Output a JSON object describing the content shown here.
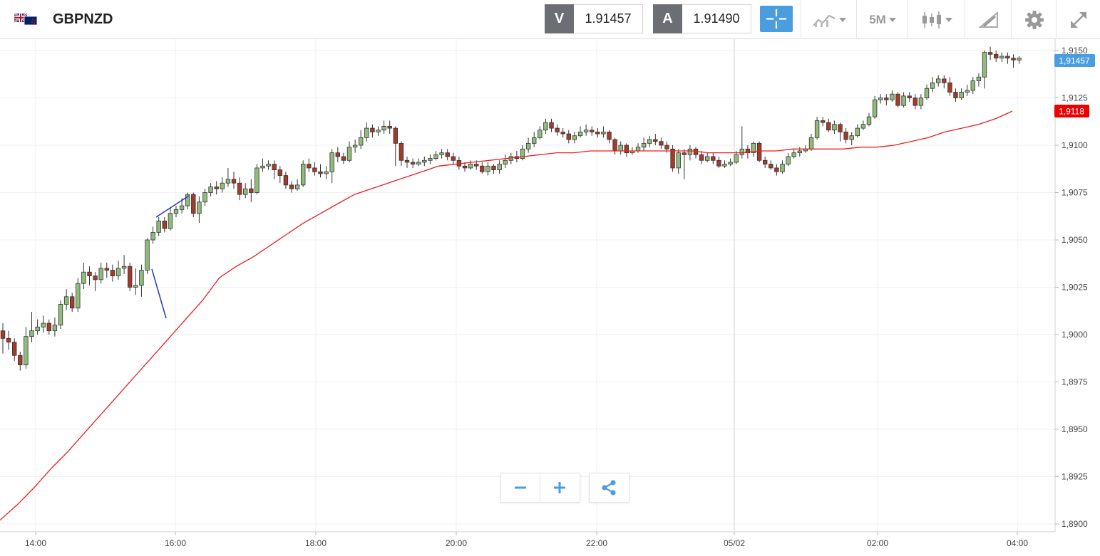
{
  "header": {
    "symbol": "GBPNZD",
    "sell_label": "V",
    "sell_price": "1.91457",
    "buy_label": "A",
    "buy_price": "1.91490",
    "timeframe": "5M"
  },
  "colors": {
    "accent": "#4a9ee0",
    "up": "#8fbc7a",
    "down": "#a33a2a",
    "ma": "#ee1c1c",
    "drawing": "#2233cc",
    "price_tag": "#4a9ee0",
    "ma_tag": "#ee0000"
  },
  "icons": [
    "gbp-nzd-flag-icon",
    "crosshair-icon",
    "chart-type-icon",
    "candlestick-icon",
    "drawing-tools-icon",
    "settings-gear-icon",
    "fullscreen-icon",
    "zoom-out-icon",
    "zoom-in-icon",
    "share-icon"
  ],
  "chart_data": {
    "type": "candlestick",
    "y_range": [
      1.8897,
      1.9152
    ],
    "x_tick_labels": [
      "14:00",
      "16:00",
      "18:00",
      "20:00",
      "22:00",
      "05/02",
      "02:00",
      "04:00"
    ],
    "y_tick_labels": [
      "1,9150",
      "1,9125",
      "1,9100",
      "1,9075",
      "1,9050",
      "1,9025",
      "1,9000",
      "1,8975",
      "1,8950",
      "1,8925",
      "1,8900"
    ],
    "current_price_tag": "1,91457",
    "ma_tag": "1,9118",
    "grid": true,
    "candles": [
      [
        1.9002,
        1.8998,
        1.9006,
        1.899
      ],
      [
        1.8998,
        1.8996,
        1.9002,
        1.8992
      ],
      [
        1.8996,
        1.8989,
        1.8998,
        1.8986
      ],
      [
        1.8989,
        1.8984,
        1.8991,
        1.8981
      ],
      [
        1.8984,
        1.8999,
        1.9004,
        1.8982
      ],
      [
        1.8999,
        1.9002,
        1.9012,
        1.8996
      ],
      [
        1.9002,
        1.9004,
        1.9008,
        1.9
      ],
      [
        1.9004,
        1.9006,
        1.901,
        1.9001
      ],
      [
        1.9006,
        1.9002,
        1.9008,
        1.9
      ],
      [
        1.9002,
        1.9005,
        1.9009,
        1.8999
      ],
      [
        1.9005,
        1.9016,
        1.9018,
        1.9003
      ],
      [
        1.9016,
        1.902,
        1.9024,
        1.9013
      ],
      [
        1.902,
        1.9014,
        1.9022,
        1.9012
      ],
      [
        1.9014,
        1.9027,
        1.903,
        1.9012
      ],
      [
        1.9027,
        1.9033,
        1.9038,
        1.9024
      ],
      [
        1.9033,
        1.9031,
        1.9036,
        1.9026
      ],
      [
        1.9031,
        1.9029,
        1.9033,
        1.9023
      ],
      [
        1.9029,
        1.9035,
        1.9038,
        1.9027
      ],
      [
        1.9035,
        1.9034,
        1.9038,
        1.903
      ],
      [
        1.9034,
        1.9031,
        1.9037,
        1.9028
      ],
      [
        1.9031,
        1.9035,
        1.9039,
        1.9029
      ],
      [
        1.9035,
        1.9036,
        1.9042,
        1.9032
      ],
      [
        1.9036,
        1.9025,
        1.9038,
        1.9023
      ],
      [
        1.9025,
        1.9026,
        1.9035,
        1.9021
      ],
      [
        1.9026,
        1.9034,
        1.9037,
        1.902
      ],
      [
        1.9034,
        1.905,
        1.9051,
        1.9032
      ],
      [
        1.905,
        1.9054,
        1.9057,
        1.9048
      ],
      [
        1.9054,
        1.906,
        1.9062,
        1.9052
      ],
      [
        1.906,
        1.9056,
        1.9062,
        1.9054
      ],
      [
        1.9056,
        1.9064,
        1.9067,
        1.9055
      ],
      [
        1.9064,
        1.9066,
        1.9068,
        1.9062
      ],
      [
        1.9066,
        1.9068,
        1.9072,
        1.9064
      ],
      [
        1.9068,
        1.9074,
        1.9075,
        1.9066
      ],
      [
        1.9074,
        1.9064,
        1.9075,
        1.9062
      ],
      [
        1.9064,
        1.907,
        1.9073,
        1.9059
      ],
      [
        1.907,
        1.9075,
        1.9077,
        1.9068
      ],
      [
        1.9075,
        1.9078,
        1.908,
        1.9073
      ],
      [
        1.9078,
        1.9077,
        1.9081,
        1.9074
      ],
      [
        1.9077,
        1.908,
        1.9083,
        1.9075
      ],
      [
        1.908,
        1.9082,
        1.9088,
        1.9078
      ],
      [
        1.9082,
        1.908,
        1.9086,
        1.9077
      ],
      [
        1.908,
        1.9074,
        1.9083,
        1.9071
      ],
      [
        1.9074,
        1.9077,
        1.908,
        1.9072
      ],
      [
        1.9077,
        1.9075,
        1.9082,
        1.907
      ],
      [
        1.9075,
        1.9088,
        1.909,
        1.9074
      ],
      [
        1.9088,
        1.9089,
        1.9093,
        1.9086
      ],
      [
        1.9089,
        1.909,
        1.9092,
        1.9087
      ],
      [
        1.909,
        1.9087,
        1.9092,
        1.9082
      ],
      [
        1.9087,
        1.9084,
        1.9089,
        1.908
      ],
      [
        1.9084,
        1.9079,
        1.9086,
        1.9077
      ],
      [
        1.9079,
        1.9077,
        1.9081,
        1.9075
      ],
      [
        1.9077,
        1.9079,
        1.9082,
        1.9076
      ],
      [
        1.9079,
        1.909,
        1.9092,
        1.9078
      ],
      [
        1.909,
        1.9088,
        1.9093,
        1.9086
      ],
      [
        1.9088,
        1.9086,
        1.9091,
        1.9084
      ],
      [
        1.9086,
        1.9085,
        1.909,
        1.9083
      ],
      [
        1.9085,
        1.9086,
        1.9089,
        1.9082
      ],
      [
        1.9086,
        1.9096,
        1.9098,
        1.908
      ],
      [
        1.9096,
        1.9094,
        1.9099,
        1.9091
      ],
      [
        1.9094,
        1.9092,
        1.9096,
        1.909
      ],
      [
        1.9092,
        1.9099,
        1.9102,
        1.9091
      ],
      [
        1.9099,
        1.91,
        1.9103,
        1.9096
      ],
      [
        1.91,
        1.9104,
        1.9108,
        1.9098
      ],
      [
        1.9104,
        1.9109,
        1.9112,
        1.9102
      ],
      [
        1.9109,
        1.9107,
        1.9111,
        1.9104
      ],
      [
        1.9107,
        1.9108,
        1.911,
        1.9105
      ],
      [
        1.9108,
        1.911,
        1.9113,
        1.9106
      ],
      [
        1.911,
        1.9109,
        1.9113,
        1.9106
      ],
      [
        1.9109,
        1.9101,
        1.911,
        1.9089
      ],
      [
        1.9101,
        1.9092,
        1.9102,
        1.9089
      ],
      [
        1.9092,
        1.9091,
        1.9094,
        1.9088
      ],
      [
        1.9091,
        1.909,
        1.9093,
        1.9088
      ],
      [
        1.909,
        1.9091,
        1.9093,
        1.9089
      ],
      [
        1.9091,
        1.9092,
        1.9094,
        1.9089
      ],
      [
        1.9092,
        1.9093,
        1.9095,
        1.909
      ],
      [
        1.9093,
        1.9095,
        1.9097,
        1.9092
      ],
      [
        1.9095,
        1.9096,
        1.9098,
        1.9093
      ],
      [
        1.9096,
        1.9094,
        1.9098,
        1.9092
      ],
      [
        1.9094,
        1.9092,
        1.9096,
        1.909
      ],
      [
        1.9092,
        1.9089,
        1.9094,
        1.9087
      ],
      [
        1.9089,
        1.9088,
        1.9091,
        1.9086
      ],
      [
        1.9088,
        1.909,
        1.9092,
        1.9087
      ],
      [
        1.909,
        1.9089,
        1.9092,
        1.9087
      ],
      [
        1.9089,
        1.9086,
        1.9091,
        1.9085
      ],
      [
        1.9086,
        1.9089,
        1.9091,
        1.9084
      ],
      [
        1.9089,
        1.9087,
        1.909,
        1.9085
      ],
      [
        1.9087,
        1.909,
        1.9092,
        1.9085
      ],
      [
        1.909,
        1.9092,
        1.9095,
        1.9088
      ],
      [
        1.9092,
        1.9094,
        1.9096,
        1.909
      ],
      [
        1.9094,
        1.9093,
        1.9097,
        1.9091
      ],
      [
        1.9093,
        1.9098,
        1.91,
        1.9092
      ],
      [
        1.9098,
        1.9101,
        1.9104,
        1.9096
      ],
      [
        1.9101,
        1.9104,
        1.9107,
        1.9099
      ],
      [
        1.9104,
        1.9108,
        1.911,
        1.9103
      ],
      [
        1.9108,
        1.9112,
        1.9114,
        1.9106
      ],
      [
        1.9112,
        1.9109,
        1.9114,
        1.9107
      ],
      [
        1.9109,
        1.9107,
        1.9111,
        1.9105
      ],
      [
        1.9107,
        1.9106,
        1.9109,
        1.9104
      ],
      [
        1.9106,
        1.9103,
        1.9108,
        1.9101
      ],
      [
        1.9103,
        1.9105,
        1.9107,
        1.9101
      ],
      [
        1.9105,
        1.9107,
        1.911,
        1.9104
      ],
      [
        1.9107,
        1.9108,
        1.9111,
        1.9105
      ],
      [
        1.9108,
        1.9107,
        1.911,
        1.9105
      ],
      [
        1.9107,
        1.9106,
        1.9109,
        1.9104
      ],
      [
        1.9106,
        1.9107,
        1.911,
        1.9104
      ],
      [
        1.9107,
        1.9103,
        1.9108,
        1.9101
      ],
      [
        1.9103,
        1.9097,
        1.9104,
        1.9095
      ],
      [
        1.9097,
        1.91,
        1.9102,
        1.9095
      ],
      [
        1.91,
        1.9096,
        1.9101,
        1.9094
      ],
      [
        1.9096,
        1.9097,
        1.9099,
        1.9095
      ],
      [
        1.9097,
        1.9099,
        1.9101,
        1.9096
      ],
      [
        1.9099,
        1.9101,
        1.9104,
        1.9097
      ],
      [
        1.9101,
        1.9103,
        1.9105,
        1.9099
      ],
      [
        1.9103,
        1.9102,
        1.9106,
        1.91
      ],
      [
        1.9102,
        1.91,
        1.9104,
        1.9098
      ],
      [
        1.91,
        1.9098,
        1.9102,
        1.9096
      ],
      [
        1.9098,
        1.9088,
        1.91,
        1.9086
      ],
      [
        1.9088,
        1.9096,
        1.9098,
        1.9085
      ],
      [
        1.9096,
        1.9095,
        1.9098,
        1.9082
      ],
      [
        1.9095,
        1.9098,
        1.91,
        1.9092
      ],
      [
        1.9098,
        1.9095,
        1.9099,
        1.9093
      ],
      [
        1.9095,
        1.9092,
        1.9097,
        1.909
      ],
      [
        1.9092,
        1.9094,
        1.9096,
        1.9091
      ],
      [
        1.9094,
        1.9092,
        1.9096,
        1.909
      ],
      [
        1.9092,
        1.9089,
        1.9094,
        1.9088
      ],
      [
        1.9089,
        1.909,
        1.9092,
        1.9088
      ],
      [
        1.909,
        1.9091,
        1.9093,
        1.9089
      ],
      [
        1.9091,
        1.9095,
        1.9097,
        1.909
      ],
      [
        1.9095,
        1.9098,
        1.911,
        1.9093
      ],
      [
        1.9098,
        1.9096,
        1.91,
        1.9093
      ],
      [
        1.9096,
        1.9101,
        1.9102,
        1.9094
      ],
      [
        1.9101,
        1.9092,
        1.9102,
        1.9091
      ],
      [
        1.9092,
        1.909,
        1.9094,
        1.9088
      ],
      [
        1.909,
        1.9088,
        1.9092,
        1.9087
      ],
      [
        1.9088,
        1.9086,
        1.909,
        1.9084
      ],
      [
        1.9086,
        1.909,
        1.9092,
        1.9085
      ],
      [
        1.909,
        1.9094,
        1.9096,
        1.9089
      ],
      [
        1.9094,
        1.9096,
        1.9098,
        1.9093
      ],
      [
        1.9096,
        1.9097,
        1.9099,
        1.9094
      ],
      [
        1.9097,
        1.9098,
        1.91,
        1.9096
      ],
      [
        1.9098,
        1.9104,
        1.9106,
        1.9097
      ],
      [
        1.9104,
        1.9113,
        1.9115,
        1.9103
      ],
      [
        1.9113,
        1.9112,
        1.9115,
        1.911
      ],
      [
        1.9112,
        1.9108,
        1.9114,
        1.9107
      ],
      [
        1.9108,
        1.9111,
        1.9113,
        1.9106
      ],
      [
        1.9111,
        1.9107,
        1.9112,
        1.9102
      ],
      [
        1.9107,
        1.9103,
        1.9109,
        1.9101
      ],
      [
        1.9103,
        1.9105,
        1.9107,
        1.91
      ],
      [
        1.9105,
        1.9109,
        1.9111,
        1.9104
      ],
      [
        1.9109,
        1.9111,
        1.9113,
        1.9108
      ],
      [
        1.9111,
        1.9115,
        1.9117,
        1.911
      ],
      [
        1.9115,
        1.9124,
        1.9126,
        1.9114
      ],
      [
        1.9124,
        1.9125,
        1.9127,
        1.9122
      ],
      [
        1.9125,
        1.9124,
        1.9127,
        1.9121
      ],
      [
        1.9124,
        1.9127,
        1.9129,
        1.9123
      ],
      [
        1.9127,
        1.9121,
        1.9128,
        1.912
      ],
      [
        1.9121,
        1.9126,
        1.9128,
        1.912
      ],
      [
        1.9126,
        1.9125,
        1.9128,
        1.9123
      ],
      [
        1.9125,
        1.9121,
        1.9127,
        1.9119
      ],
      [
        1.9121,
        1.9125,
        1.9127,
        1.9119
      ],
      [
        1.9125,
        1.913,
        1.9132,
        1.9124
      ],
      [
        1.913,
        1.9133,
        1.9136,
        1.9128
      ],
      [
        1.9133,
        1.9135,
        1.9137,
        1.9131
      ],
      [
        1.9135,
        1.9133,
        1.9137,
        1.913
      ],
      [
        1.9133,
        1.9128,
        1.9136,
        1.9126
      ],
      [
        1.9128,
        1.9125,
        1.913,
        1.9123
      ],
      [
        1.9125,
        1.9128,
        1.913,
        1.9124
      ],
      [
        1.9128,
        1.9129,
        1.9132,
        1.9126
      ],
      [
        1.9129,
        1.9134,
        1.9136,
        1.9127
      ],
      [
        1.9134,
        1.9136,
        1.9138,
        1.9131
      ],
      [
        1.9136,
        1.9149,
        1.915,
        1.913
      ],
      [
        1.9149,
        1.9148,
        1.9152,
        1.9145
      ],
      [
        1.9148,
        1.9146,
        1.915,
        1.9144
      ],
      [
        1.9146,
        1.9147,
        1.9149,
        1.9144
      ],
      [
        1.9147,
        1.9146,
        1.9149,
        1.9143
      ],
      [
        1.9146,
        1.9145,
        1.9148,
        1.9141
      ],
      [
        1.9145,
        1.9146,
        1.9147,
        1.9143
      ]
    ],
    "ma": [
      1.8902,
      1.891,
      1.8919,
      1.8929,
      1.8938,
      1.8948,
      1.8958,
      1.8968,
      1.8978,
      1.8988,
      1.8998,
      1.9008,
      1.9018,
      1.903,
      1.9036,
      1.9041,
      1.9047,
      1.9053,
      1.9059,
      1.9064,
      1.9069,
      1.9074,
      1.9077,
      1.908,
      1.9083,
      1.9086,
      1.9089,
      1.909,
      1.9091,
      1.9092,
      1.9093,
      1.9094,
      1.9095,
      1.9096,
      1.9096,
      1.9097,
      1.9097,
      1.9097,
      1.9097,
      1.9097,
      1.9097,
      1.9097,
      1.9096,
      1.9096,
      1.9096,
      1.9097,
      1.9097,
      1.9098,
      1.9098,
      1.9098,
      1.9098,
      1.9099,
      1.9099,
      1.91,
      1.9102,
      1.9104,
      1.9107,
      1.9109,
      1.9111,
      1.9114,
      1.9118
    ]
  }
}
